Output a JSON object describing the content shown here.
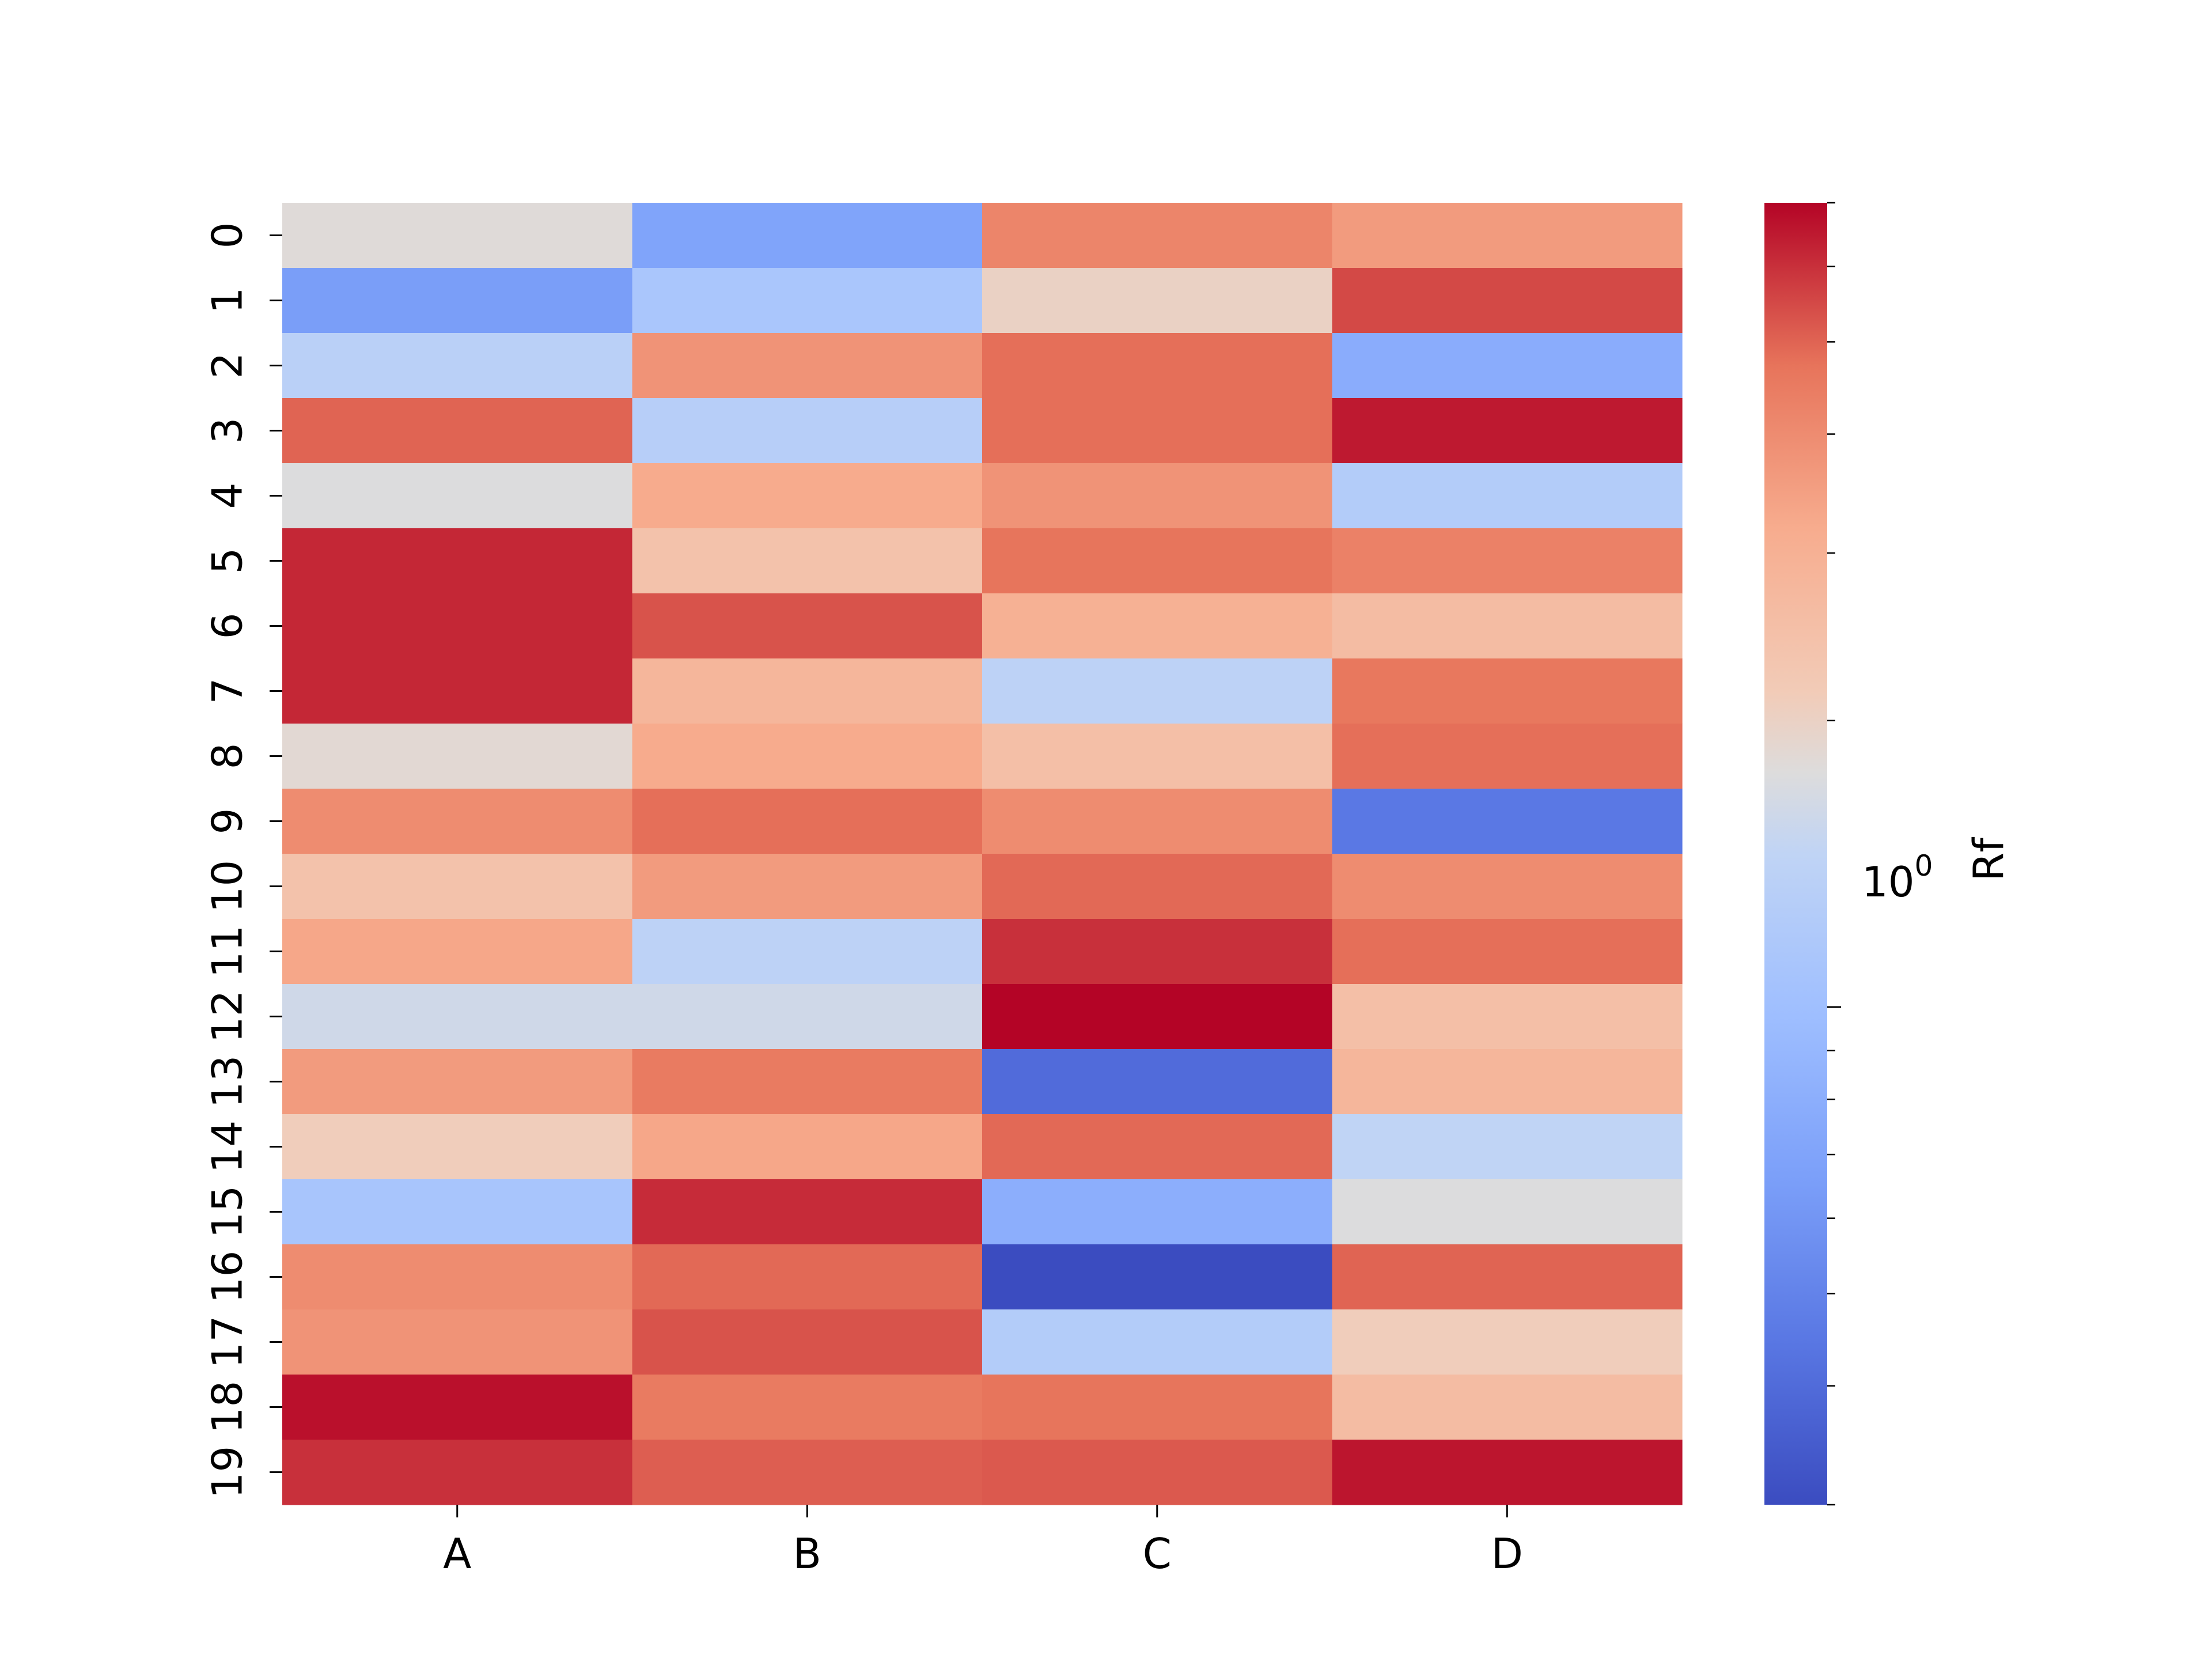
{
  "chart_data": {
    "type": "heatmap",
    "columns": [
      "A",
      "B",
      "C",
      "D"
    ],
    "rows": [
      "0",
      "1",
      "2",
      "3",
      "4",
      "5",
      "6",
      "7",
      "8",
      "9",
      "10",
      "11",
      "12",
      "13",
      "14",
      "15",
      "16",
      "17",
      "18",
      "19"
    ],
    "values": [
      [
        1.8,
        0.7,
        4.2,
        3.6
      ],
      [
        0.65,
        1.12,
        2.0,
        5.5
      ],
      [
        1.35,
        3.8,
        4.8,
        0.78
      ],
      [
        5.0,
        1.3,
        4.8,
        6.5
      ],
      [
        1.75,
        3.2,
        3.8,
        1.25
      ],
      [
        6.2,
        2.4,
        4.7,
        4.3
      ],
      [
        6.2,
        5.3,
        3.0,
        2.6
      ],
      [
        6.2,
        2.8,
        1.4,
        4.6
      ],
      [
        1.85,
        3.2,
        2.5,
        4.8
      ],
      [
        4.0,
        4.8,
        4.0,
        0.45
      ],
      [
        2.4,
        3.6,
        4.9,
        4.0
      ],
      [
        3.3,
        1.4,
        6.0,
        4.8
      ],
      [
        1.6,
        1.6,
        7.0,
        2.5
      ],
      [
        3.6,
        4.5,
        0.4,
        2.8
      ],
      [
        2.1,
        3.3,
        4.9,
        1.45
      ],
      [
        1.1,
        6.1,
        0.8,
        1.75
      ],
      [
        4.0,
        4.9,
        0.3,
        5.0
      ],
      [
        3.8,
        5.3,
        1.25,
        2.1
      ],
      [
        6.7,
        4.5,
        4.7,
        2.6
      ],
      [
        6.0,
        5.1,
        5.2,
        6.6
      ]
    ],
    "scale": "log",
    "colormap": "coolwarm",
    "vmin": 0.3,
    "vmax": 7.0,
    "colorbar": {
      "label": "Rf",
      "tick_label_base": "10",
      "tick_label_exp": "0",
      "position": "right"
    },
    "grid": false,
    "colors": {
      "cold": "#3b4cc0",
      "neutral": "#dddddd",
      "warm": "#b40426"
    }
  }
}
